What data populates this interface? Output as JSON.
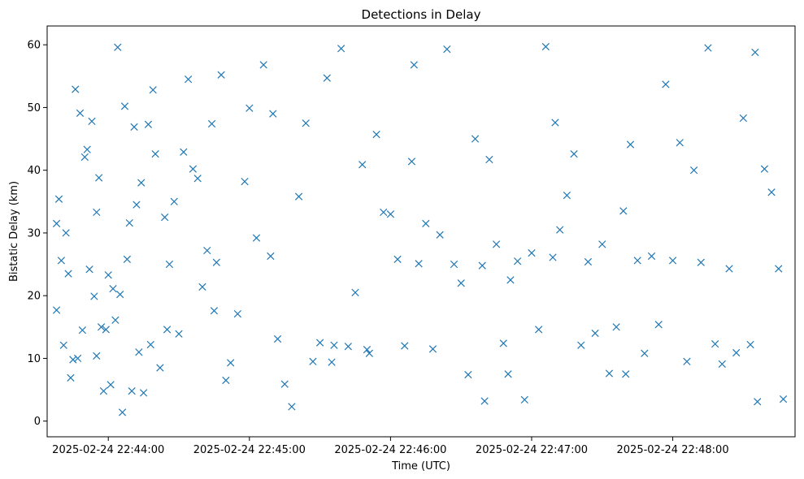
{
  "chart_data": {
    "type": "scatter",
    "title": "Detections in Delay",
    "xlabel": "Time (UTC)",
    "ylabel": "Bistatic Delay (km)",
    "xlim": [
      "2025-02-24 22:43:34",
      "2025-02-24 22:48:52"
    ],
    "ylim": [
      -2.5,
      63
    ],
    "x_ticks": [
      "2025-02-24 22:44:00",
      "2025-02-24 22:45:00",
      "2025-02-24 22:46:00",
      "2025-02-24 22:47:00",
      "2025-02-24 22:48:00"
    ],
    "y_ticks": [
      0,
      10,
      20,
      30,
      40,
      50,
      60
    ],
    "marker": "x",
    "color": "#1f77b4",
    "grid": false,
    "series": [
      {
        "name": "",
        "x": [
          "22:43:38",
          "22:43:38",
          "22:43:39",
          "22:43:40",
          "22:43:41",
          "22:43:42",
          "22:43:43",
          "22:43:44",
          "22:43:46",
          "22:43:47",
          "22:43:48",
          "22:43:49",
          "22:43:50",
          "22:43:51",
          "22:43:52",
          "22:43:53",
          "22:43:54",
          "22:43:55",
          "22:43:56",
          "22:43:57",
          "22:43:58",
          "22:43:59",
          "22:44:00",
          "22:44:01",
          "22:44:02",
          "22:44:03",
          "22:44:04",
          "22:44:05",
          "22:44:06",
          "22:44:07",
          "22:44:08",
          "22:44:09",
          "22:44:10",
          "22:44:11",
          "22:44:12",
          "22:44:13",
          "22:44:14",
          "22:44:15",
          "22:44:17",
          "22:44:18",
          "22:44:19",
          "22:44:20",
          "22:44:22",
          "22:44:24",
          "22:44:26",
          "22:44:28",
          "22:44:30",
          "22:44:32",
          "22:44:34",
          "22:44:36",
          "22:44:38",
          "22:44:40",
          "22:44:42",
          "22:44:44",
          "22:44:46",
          "22:44:48",
          "22:44:50",
          "22:44:52",
          "22:44:55",
          "22:44:58",
          "22:45:00",
          "22:45:03",
          "22:45:06",
          "22:45:09",
          "22:45:12",
          "22:45:15",
          "22:45:18",
          "22:45:21",
          "22:45:24",
          "22:45:27",
          "22:45:30",
          "22:45:33",
          "22:45:36",
          "22:45:39",
          "22:45:42",
          "22:45:45",
          "22:45:48",
          "22:45:51",
          "22:45:54",
          "22:45:57",
          "22:46:00",
          "22:46:03",
          "22:46:06",
          "22:46:09",
          "22:46:12",
          "22:46:15",
          "22:46:18",
          "22:46:21",
          "22:46:24",
          "22:46:27",
          "22:46:30",
          "22:46:33",
          "22:46:36",
          "22:46:39",
          "22:46:42",
          "22:46:45",
          "22:46:48",
          "22:46:51",
          "22:46:54",
          "22:46:57",
          "22:47:00",
          "22:47:03",
          "22:47:06",
          "22:47:09",
          "22:47:12",
          "22:47:15",
          "22:47:18",
          "22:47:21",
          "22:47:24",
          "22:47:27",
          "22:47:30",
          "22:47:33",
          "22:47:36",
          "22:47:39",
          "22:47:42",
          "22:47:45",
          "22:47:48",
          "22:47:51",
          "22:47:54",
          "22:47:57",
          "22:48:00",
          "22:48:03",
          "22:48:06",
          "22:48:09",
          "22:48:12",
          "22:48:15",
          "22:48:18",
          "22:48:21",
          "22:48:24",
          "22:48:27",
          "22:48:30",
          "22:48:33",
          "22:48:36",
          "22:48:39",
          "22:48:42",
          "22:48:45",
          "22:48:47",
          "22:43:45",
          "22:44:25",
          "22:45:35",
          "22:46:50",
          "22:47:40",
          "22:48:35",
          "22:45:10",
          "22:46:10",
          "22:47:10",
          "22:43:55",
          "22:44:45",
          "22:45:50",
          "22:46:40"
        ],
        "y": [
          31.5,
          17.7,
          35.4,
          25.6,
          12.1,
          30.0,
          23.5,
          6.9,
          52.9,
          10.0,
          49.1,
          14.5,
          42.1,
          43.3,
          24.2,
          47.8,
          19.9,
          33.3,
          38.8,
          15.0,
          4.8,
          14.6,
          23.3,
          5.8,
          21.1,
          16.1,
          59.6,
          20.2,
          1.4,
          50.2,
          25.8,
          31.6,
          4.8,
          46.9,
          34.5,
          11.0,
          38.0,
          4.5,
          47.3,
          12.2,
          52.8,
          42.6,
          8.5,
          32.5,
          25.0,
          35.0,
          13.9,
          42.9,
          54.5,
          40.2,
          38.7,
          21.4,
          27.2,
          47.4,
          25.3,
          55.2,
          6.5,
          9.3,
          17.1,
          38.2,
          49.9,
          29.2,
          56.8,
          26.3,
          13.1,
          5.9,
          2.3,
          35.8,
          47.5,
          9.5,
          12.5,
          54.7,
          12.1,
          59.4,
          11.9,
          20.5,
          40.9,
          10.8,
          45.7,
          33.3,
          33.0,
          25.8,
          12.0,
          41.4,
          25.1,
          31.5,
          11.5,
          29.7,
          59.3,
          25.0,
          22.0,
          7.4,
          45.0,
          24.8,
          41.7,
          28.2,
          12.4,
          22.5,
          25.5,
          3.4,
          26.8,
          14.6,
          59.7,
          26.1,
          30.5,
          36.0,
          42.6,
          12.1,
          25.4,
          14.0,
          28.2,
          7.6,
          15.0,
          33.5,
          44.1,
          25.6,
          10.8,
          26.3,
          15.4,
          53.7,
          25.6,
          44.4,
          9.5,
          40.0,
          25.3,
          59.5,
          12.3,
          9.1,
          24.3,
          10.9,
          48.3,
          12.2,
          3.1,
          40.2,
          36.5,
          24.3,
          3.5,
          9.8,
          14.6,
          9.4,
          7.5,
          7.5,
          58.8,
          49.0,
          56.8,
          47.6,
          10.4,
          17.6,
          11.4,
          3.2
        ]
      }
    ]
  }
}
